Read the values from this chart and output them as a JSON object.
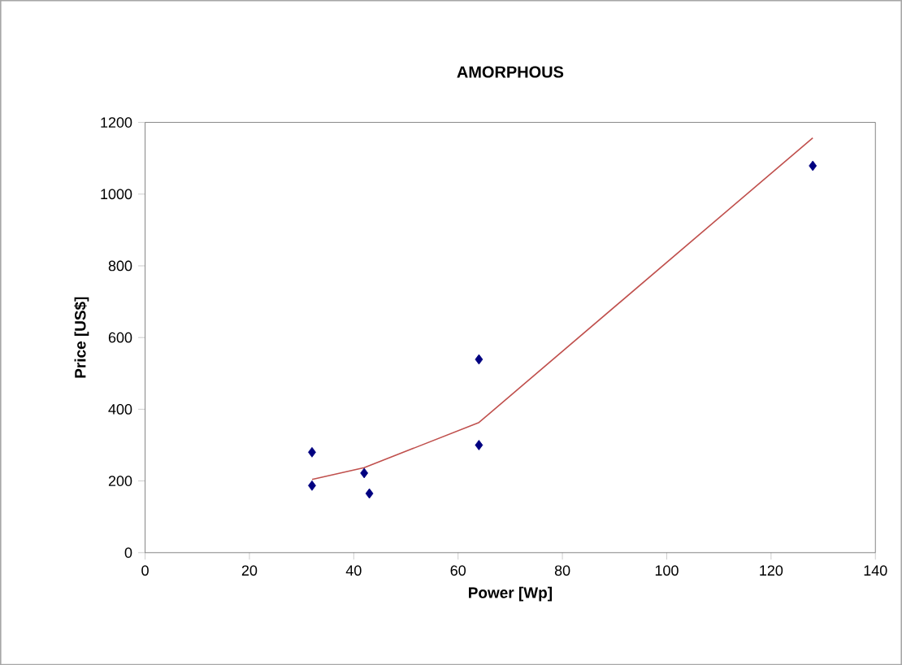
{
  "chart_data": {
    "type": "scatter",
    "title": "AMORPHOUS",
    "xlabel": "Power [Wp]",
    "ylabel": "Price [US$]",
    "xlim": [
      0,
      140
    ],
    "xticks": [
      0,
      20,
      40,
      60,
      80,
      100,
      120,
      140
    ],
    "ylim": [
      0,
      1200
    ],
    "yticks": [
      0,
      200,
      400,
      600,
      800,
      1000,
      1200
    ],
    "grid": false,
    "marker": "diamond",
    "series": [
      {
        "color": "#000080",
        "x": [
          32,
          32,
          42,
          43,
          64,
          64,
          128
        ],
        "values": [
          280,
          187,
          222,
          165,
          539,
          300,
          1079
        ]
      },
      {
        "type": "line",
        "color": "#c0504d",
        "marker": "none",
        "x": [
          32,
          42,
          64,
          128
        ],
        "values": [
          204,
          237,
          363,
          1157
        ]
      }
    ]
  }
}
